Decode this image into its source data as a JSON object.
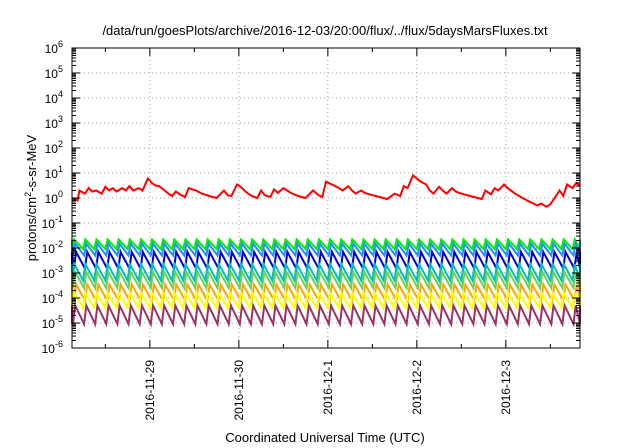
{
  "chart_data": {
    "type": "line",
    "title": "/data/run/goesPlots/archive/2016-12-03/20:00/flux/../flux/5daysMarsFluxes.txt",
    "xlabel": "Coordinated Universal Time (UTC)",
    "ylabel": {
      "base": "protons/cm",
      "sup": "2",
      "rest": "-s-sr-MeV"
    },
    "y_scale": "log",
    "ylim": [
      1e-06,
      1000000.0
    ],
    "y_ticks": [
      {
        "value": 1e-06,
        "base": "10",
        "exp": "-6"
      },
      {
        "value": 1e-05,
        "base": "10",
        "exp": "-5"
      },
      {
        "value": 0.0001,
        "base": "10",
        "exp": "-4"
      },
      {
        "value": 0.001,
        "base": "10",
        "exp": "-3"
      },
      {
        "value": 0.01,
        "base": "10",
        "exp": "-2"
      },
      {
        "value": 0.1,
        "base": "10",
        "exp": "-1"
      },
      {
        "value": 1,
        "base": "10",
        "exp": "0"
      },
      {
        "value": 10.0,
        "base": "10",
        "exp": "1"
      },
      {
        "value": 100.0,
        "base": "10",
        "exp": "2"
      },
      {
        "value": 1000.0,
        "base": "10",
        "exp": "3"
      },
      {
        "value": 10000.0,
        "base": "10",
        "exp": "4"
      },
      {
        "value": 100000.0,
        "base": "10",
        "exp": "5"
      },
      {
        "value": 1000000.0,
        "base": "10",
        "exp": "6"
      }
    ],
    "xlim": [
      "2016-11-28T03:00",
      "2016-12-03T20:00"
    ],
    "x_ticks": [
      "2016-11-29",
      "2016-11-30",
      "2016-12-1",
      "2016-12-2",
      "2016-12-3"
    ],
    "x_tick_values": [
      "2016-11-29T00:00",
      "2016-11-30T00:00",
      "2016-12-01T00:00",
      "2016-12-02T00:00",
      "2016-12-03T00:00"
    ],
    "grid": true,
    "legend": "none",
    "series": [
      {
        "color": "#ff0000",
        "x": [
          "2016-11-28T03:00",
          "2016-11-28T04:30",
          "2016-11-28T05:00",
          "2016-11-28T06:30",
          "2016-11-28T07:30",
          "2016-11-28T08:30",
          "2016-11-28T09:30",
          "2016-11-28T11:00",
          "2016-11-28T12:00",
          "2016-11-28T13:00",
          "2016-11-28T14:00",
          "2016-11-28T15:00",
          "2016-11-28T16:30",
          "2016-11-28T17:30",
          "2016-11-28T18:30",
          "2016-11-28T19:30",
          "2016-11-28T21:00",
          "2016-11-28T22:00",
          "2016-11-28T23:30",
          "2016-11-29T00:30",
          "2016-11-29T01:30",
          "2016-11-29T02:30",
          "2016-11-29T04:00",
          "2016-11-29T05:00",
          "2016-11-29T06:00",
          "2016-11-29T07:00",
          "2016-11-29T08:30",
          "2016-11-29T09:30",
          "2016-11-29T10:30",
          "2016-11-29T11:30",
          "2016-11-29T12:30",
          "2016-11-29T14:00",
          "2016-11-29T16:00",
          "2016-11-29T18:00",
          "2016-11-29T20:00",
          "2016-11-29T21:00",
          "2016-11-29T22:00",
          "2016-11-29T23:30",
          "2016-11-30T00:30",
          "2016-11-30T01:30",
          "2016-11-30T02:30",
          "2016-11-30T03:30",
          "2016-11-30T05:00",
          "2016-11-30T06:00",
          "2016-11-30T07:00",
          "2016-11-30T08:30",
          "2016-11-30T09:30",
          "2016-11-30T10:30",
          "2016-11-30T12:00",
          "2016-11-30T13:00",
          "2016-11-30T14:00",
          "2016-11-30T16:00",
          "2016-11-30T18:00",
          "2016-11-30T20:00",
          "2016-11-30T21:30",
          "2016-11-30T22:30",
          "2016-11-30T23:30",
          "2016-12-01T01:00",
          "2016-12-01T02:00",
          "2016-12-01T03:00",
          "2016-12-01T04:00",
          "2016-12-01T05:30",
          "2016-12-01T06:30",
          "2016-12-01T07:30",
          "2016-12-01T09:00",
          "2016-12-01T10:00",
          "2016-12-01T12:00",
          "2016-12-01T14:00",
          "2016-12-01T16:00",
          "2016-12-01T18:00",
          "2016-12-01T19:30",
          "2016-12-01T20:30",
          "2016-12-01T21:30",
          "2016-12-01T23:00",
          "2016-12-02T00:00",
          "2016-12-02T01:00",
          "2016-12-02T02:30",
          "2016-12-02T03:30",
          "2016-12-02T04:30",
          "2016-12-02T06:00",
          "2016-12-02T07:00",
          "2016-12-02T08:00",
          "2016-12-02T09:30",
          "2016-12-02T10:30",
          "2016-12-02T11:30",
          "2016-12-02T13:30",
          "2016-12-02T15:30",
          "2016-12-02T17:30",
          "2016-12-02T18:30",
          "2016-12-02T20:00",
          "2016-12-02T21:00",
          "2016-12-02T22:00",
          "2016-12-02T23:30",
          "2016-12-03T00:30",
          "2016-12-03T02:30",
          "2016-12-03T04:30",
          "2016-12-03T06:30",
          "2016-12-03T08:30",
          "2016-12-03T09:30",
          "2016-12-03T11:00",
          "2016-12-03T12:00",
          "2016-12-03T13:00",
          "2016-12-03T14:30",
          "2016-12-03T15:30",
          "2016-12-03T16:30",
          "2016-12-03T18:00",
          "2016-12-03T19:00",
          "2016-12-03T20:00"
        ],
        "y": [
          1.0,
          0.8,
          2.0,
          1.5,
          2.5,
          1.8,
          2.0,
          1.5,
          2.8,
          2.0,
          2.5,
          1.8,
          2.5,
          2.0,
          3.0,
          2.0,
          2.5,
          2.0,
          6.0,
          4.0,
          3.2,
          3.0,
          2.0,
          1.5,
          1.2,
          1.8,
          1.3,
          1.1,
          2.5,
          2.2,
          2.0,
          1.5,
          1.2,
          1.0,
          2.0,
          1.3,
          1.2,
          3.5,
          2.8,
          2.0,
          1.5,
          1.2,
          1.0,
          2.0,
          1.3,
          1.1,
          2.2,
          1.6,
          2.5,
          2.0,
          1.6,
          1.2,
          1.0,
          2.0,
          1.3,
          1.1,
          4.5,
          3.5,
          3.0,
          2.5,
          2.0,
          3.0,
          2.0,
          1.5,
          2.0,
          1.6,
          1.3,
          1.1,
          0.9,
          1.5,
          1.2,
          3.0,
          2.5,
          8.0,
          6.0,
          4.5,
          3.5,
          2.0,
          1.5,
          2.8,
          2.0,
          1.5,
          2.5,
          1.8,
          1.6,
          1.3,
          1.1,
          0.9,
          2.0,
          1.4,
          2.5,
          2.0,
          3.5,
          2.5,
          1.5,
          1.0,
          0.7,
          0.5,
          0.6,
          0.45,
          0.55,
          0.9,
          2.0,
          1.2,
          3.5,
          2.5,
          4.0,
          3.0
        ]
      }
    ],
    "bands": [
      {
        "color": "#00ee00",
        "low": 0.009,
        "high": 0.022
      },
      {
        "color": "#1e90ff",
        "low": 0.005,
        "high": 0.015
      },
      {
        "color": "#0000cc",
        "low": 0.0015,
        "high": 0.007
      },
      {
        "color": "#00c0c0",
        "low": 0.0005,
        "high": 0.0023
      },
      {
        "color": "#6fcf50",
        "low": 0.00025,
        "high": 0.0011
      },
      {
        "color": "#ffa500",
        "low": 8e-05,
        "high": 0.00035
      },
      {
        "color": "#ffff00",
        "low": 4e-05,
        "high": 0.00016
      },
      {
        "color": "#993366",
        "low": 9e-06,
        "high": 5e-05
      }
    ]
  }
}
